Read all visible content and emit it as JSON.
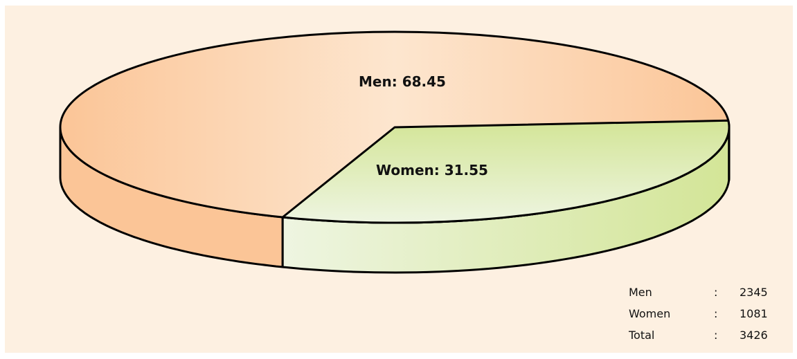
{
  "chart_data": {
    "type": "pie",
    "title": "",
    "three_d": true,
    "slices": [
      {
        "name": "Men",
        "value": 68.45,
        "label": "Men: 68.45",
        "color": "#fbc597",
        "color_light": "#fde6cf"
      },
      {
        "name": "Women",
        "value": 31.55,
        "label": "Women: 31.55",
        "color": "#d3e597",
        "color_light": "#eef5e1"
      }
    ],
    "legend": "none",
    "background": "#fdf0e1"
  },
  "totals": [
    {
      "name": "Men",
      "sep": ":",
      "value": "2345"
    },
    {
      "name": "Women",
      "sep": ":",
      "value": "1081"
    },
    {
      "name": "Total",
      "sep": ":",
      "value": "3426"
    }
  ]
}
